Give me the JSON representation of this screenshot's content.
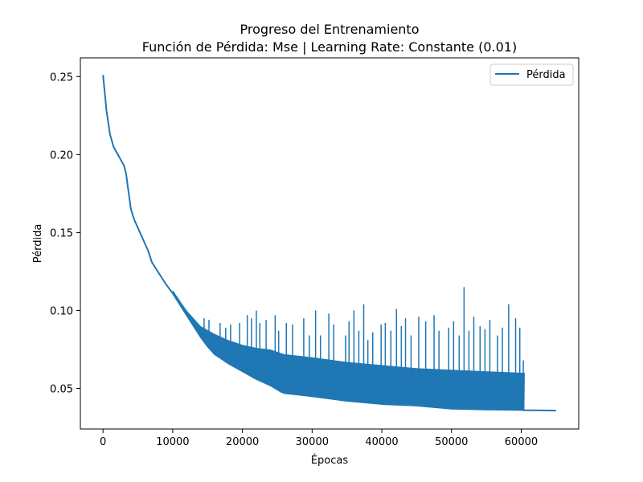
{
  "chart_data": {
    "type": "line",
    "title": "Progreso del Entrenamiento",
    "subtitle": "Función de Pérdida: Mse | Learning Rate: Constante (0.01)",
    "xlabel": "Épocas",
    "ylabel": "Pérdida",
    "xlim": [
      -3250,
      68250
    ],
    "ylim": [
      0.024,
      0.262
    ],
    "xticks": [
      0,
      10000,
      20000,
      30000,
      40000,
      50000,
      60000
    ],
    "xtick_labels": [
      "0",
      "10000",
      "20000",
      "30000",
      "40000",
      "50000",
      "60000"
    ],
    "yticks": [
      0.05,
      0.1,
      0.15,
      0.2,
      0.25
    ],
    "ytick_labels": [
      "0.05",
      "0.10",
      "0.15",
      "0.20",
      "0.25"
    ],
    "grid": false,
    "legend": {
      "position": "top-right",
      "entries": [
        "Pérdida"
      ]
    },
    "colors": {
      "line": "#1f77b4"
    },
    "series": [
      {
        "name": "Pérdida",
        "baseline": {
          "x": [
            0,
            500,
            1000,
            1500,
            2000,
            2500,
            3000,
            3300,
            3600,
            4000,
            4500,
            5000,
            5500,
            6000,
            6500,
            7000,
            8000,
            9000,
            10000,
            11000,
            12000,
            13000,
            14000,
            15000,
            16000,
            18000,
            20000,
            22000,
            24000,
            25500,
            26000,
            28000,
            30000,
            35000,
            40000,
            45000,
            50000,
            55000,
            60000,
            60500,
            62000,
            65000
          ],
          "y": [
            0.251,
            0.228,
            0.213,
            0.205,
            0.201,
            0.197,
            0.193,
            0.188,
            0.178,
            0.165,
            0.158,
            0.153,
            0.148,
            0.143,
            0.138,
            0.131,
            0.124,
            0.117,
            0.111,
            0.104,
            0.097,
            0.09,
            0.083,
            0.077,
            0.072,
            0.066,
            0.061,
            0.056,
            0.052,
            0.048,
            0.047,
            0.046,
            0.045,
            0.042,
            0.04,
            0.039,
            0.037,
            0.0365,
            0.0362,
            0.036,
            0.036,
            0.0358
          ]
        },
        "envelope_top": {
          "x": [
            10000,
            12000,
            14000,
            16000,
            18000,
            20000,
            22000,
            24000,
            26000,
            28000,
            30000,
            35000,
            40000,
            45000,
            50000,
            55000,
            60500
          ],
          "y": [
            0.113,
            0.1,
            0.09,
            0.085,
            0.081,
            0.078,
            0.076,
            0.075,
            0.072,
            0.071,
            0.07,
            0.067,
            0.065,
            0.063,
            0.062,
            0.061,
            0.06
          ]
        },
        "spikes": {
          "x": [
            14500,
            15200,
            16800,
            17600,
            18300,
            19600,
            20700,
            21300,
            22000,
            22500,
            23400,
            24700,
            25200,
            26300,
            27200,
            28800,
            29600,
            30500,
            31200,
            32400,
            33100,
            34800,
            35300,
            36000,
            36700,
            37400,
            38000,
            38700,
            39900,
            40500,
            41300,
            42100,
            42800,
            43400,
            44200,
            45300,
            46300,
            47500,
            48200,
            49600,
            50300,
            51100,
            51800,
            52500,
            53200,
            54100,
            54800,
            55500,
            56600,
            57300,
            58200,
            59200,
            59800,
            60300
          ],
          "y": [
            0.095,
            0.094,
            0.092,
            0.089,
            0.091,
            0.092,
            0.097,
            0.095,
            0.1,
            0.092,
            0.094,
            0.097,
            0.087,
            0.092,
            0.091,
            0.095,
            0.084,
            0.1,
            0.084,
            0.098,
            0.091,
            0.084,
            0.093,
            0.1,
            0.087,
            0.104,
            0.081,
            0.086,
            0.091,
            0.092,
            0.087,
            0.101,
            0.09,
            0.095,
            0.084,
            0.096,
            0.093,
            0.097,
            0.087,
            0.089,
            0.093,
            0.084,
            0.115,
            0.087,
            0.096,
            0.09,
            0.088,
            0.094,
            0.084,
            0.089,
            0.104,
            0.095,
            0.089,
            0.068
          ]
        }
      }
    ]
  }
}
